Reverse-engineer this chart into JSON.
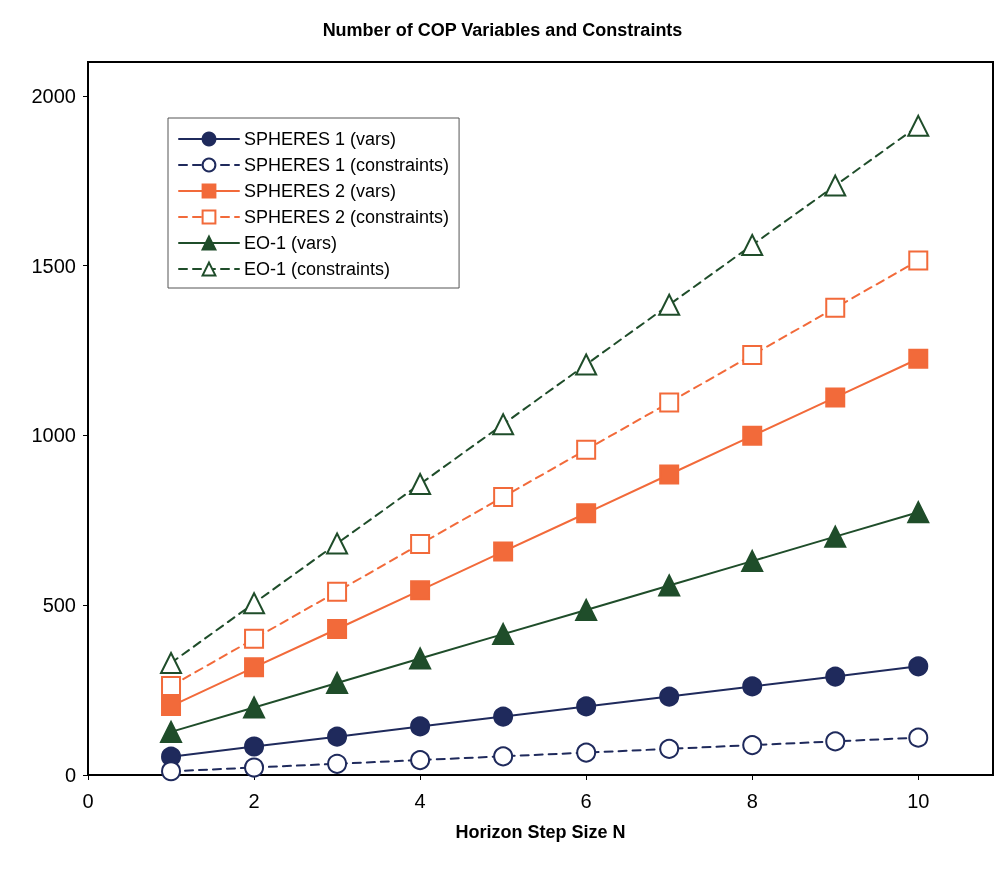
{
  "chart_data": {
    "type": "line",
    "title": "Number of COP Variables and Constraints",
    "xlabel": "Horizon Step Size N",
    "x": [
      1,
      2,
      3,
      4,
      5,
      6,
      7,
      8,
      9,
      10
    ],
    "series": [
      {
        "name": "SPHERES 1 (vars)",
        "color": "#1f2a5c",
        "marker": "circle",
        "line_style": "solid",
        "values": [
          54,
          84,
          113,
          143,
          172,
          202,
          231,
          261,
          290,
          320
        ]
      },
      {
        "name": "SPHERES 1 (constraints)",
        "color": "#1f2a5c",
        "marker": "circle",
        "line_style": "dashed",
        "values": [
          11,
          22,
          33,
          44,
          55,
          66,
          77,
          88,
          99,
          110
        ]
      },
      {
        "name": "SPHERES 2 (vars)",
        "color": "#f26a3a",
        "marker": "square",
        "line_style": "solid",
        "values": [
          203,
          317,
          430,
          544,
          658,
          771,
          885,
          999,
          1112,
          1226
        ]
      },
      {
        "name": "SPHERES 2 (constraints)",
        "color": "#f26a3a",
        "marker": "square",
        "line_style": "dashed",
        "values": [
          262,
          401,
          540,
          680,
          819,
          958,
          1097,
          1237,
          1376,
          1515
        ]
      },
      {
        "name": "EO-1 (vars)",
        "color": "#1f4d2a",
        "marker": "triangle",
        "line_style": "solid",
        "values": [
          127,
          199,
          271,
          343,
          415,
          486,
          558,
          630,
          702,
          774
        ]
      },
      {
        "name": "EO-1 (constraints)",
        "color": "#1f4d2a",
        "marker": "triangle",
        "line_style": "dashed",
        "values": [
          330,
          506,
          682,
          857,
          1033,
          1209,
          1385,
          1561,
          1736,
          1912
        ]
      }
    ],
    "xlim": [
      0,
      10.9
    ],
    "xticks": [
      0,
      2,
      4,
      6,
      8,
      10
    ],
    "ylim": [
      0,
      2100
    ],
    "yticks": [
      0,
      500,
      1000,
      1500,
      2000
    ],
    "grid": false,
    "legend": "top left"
  }
}
